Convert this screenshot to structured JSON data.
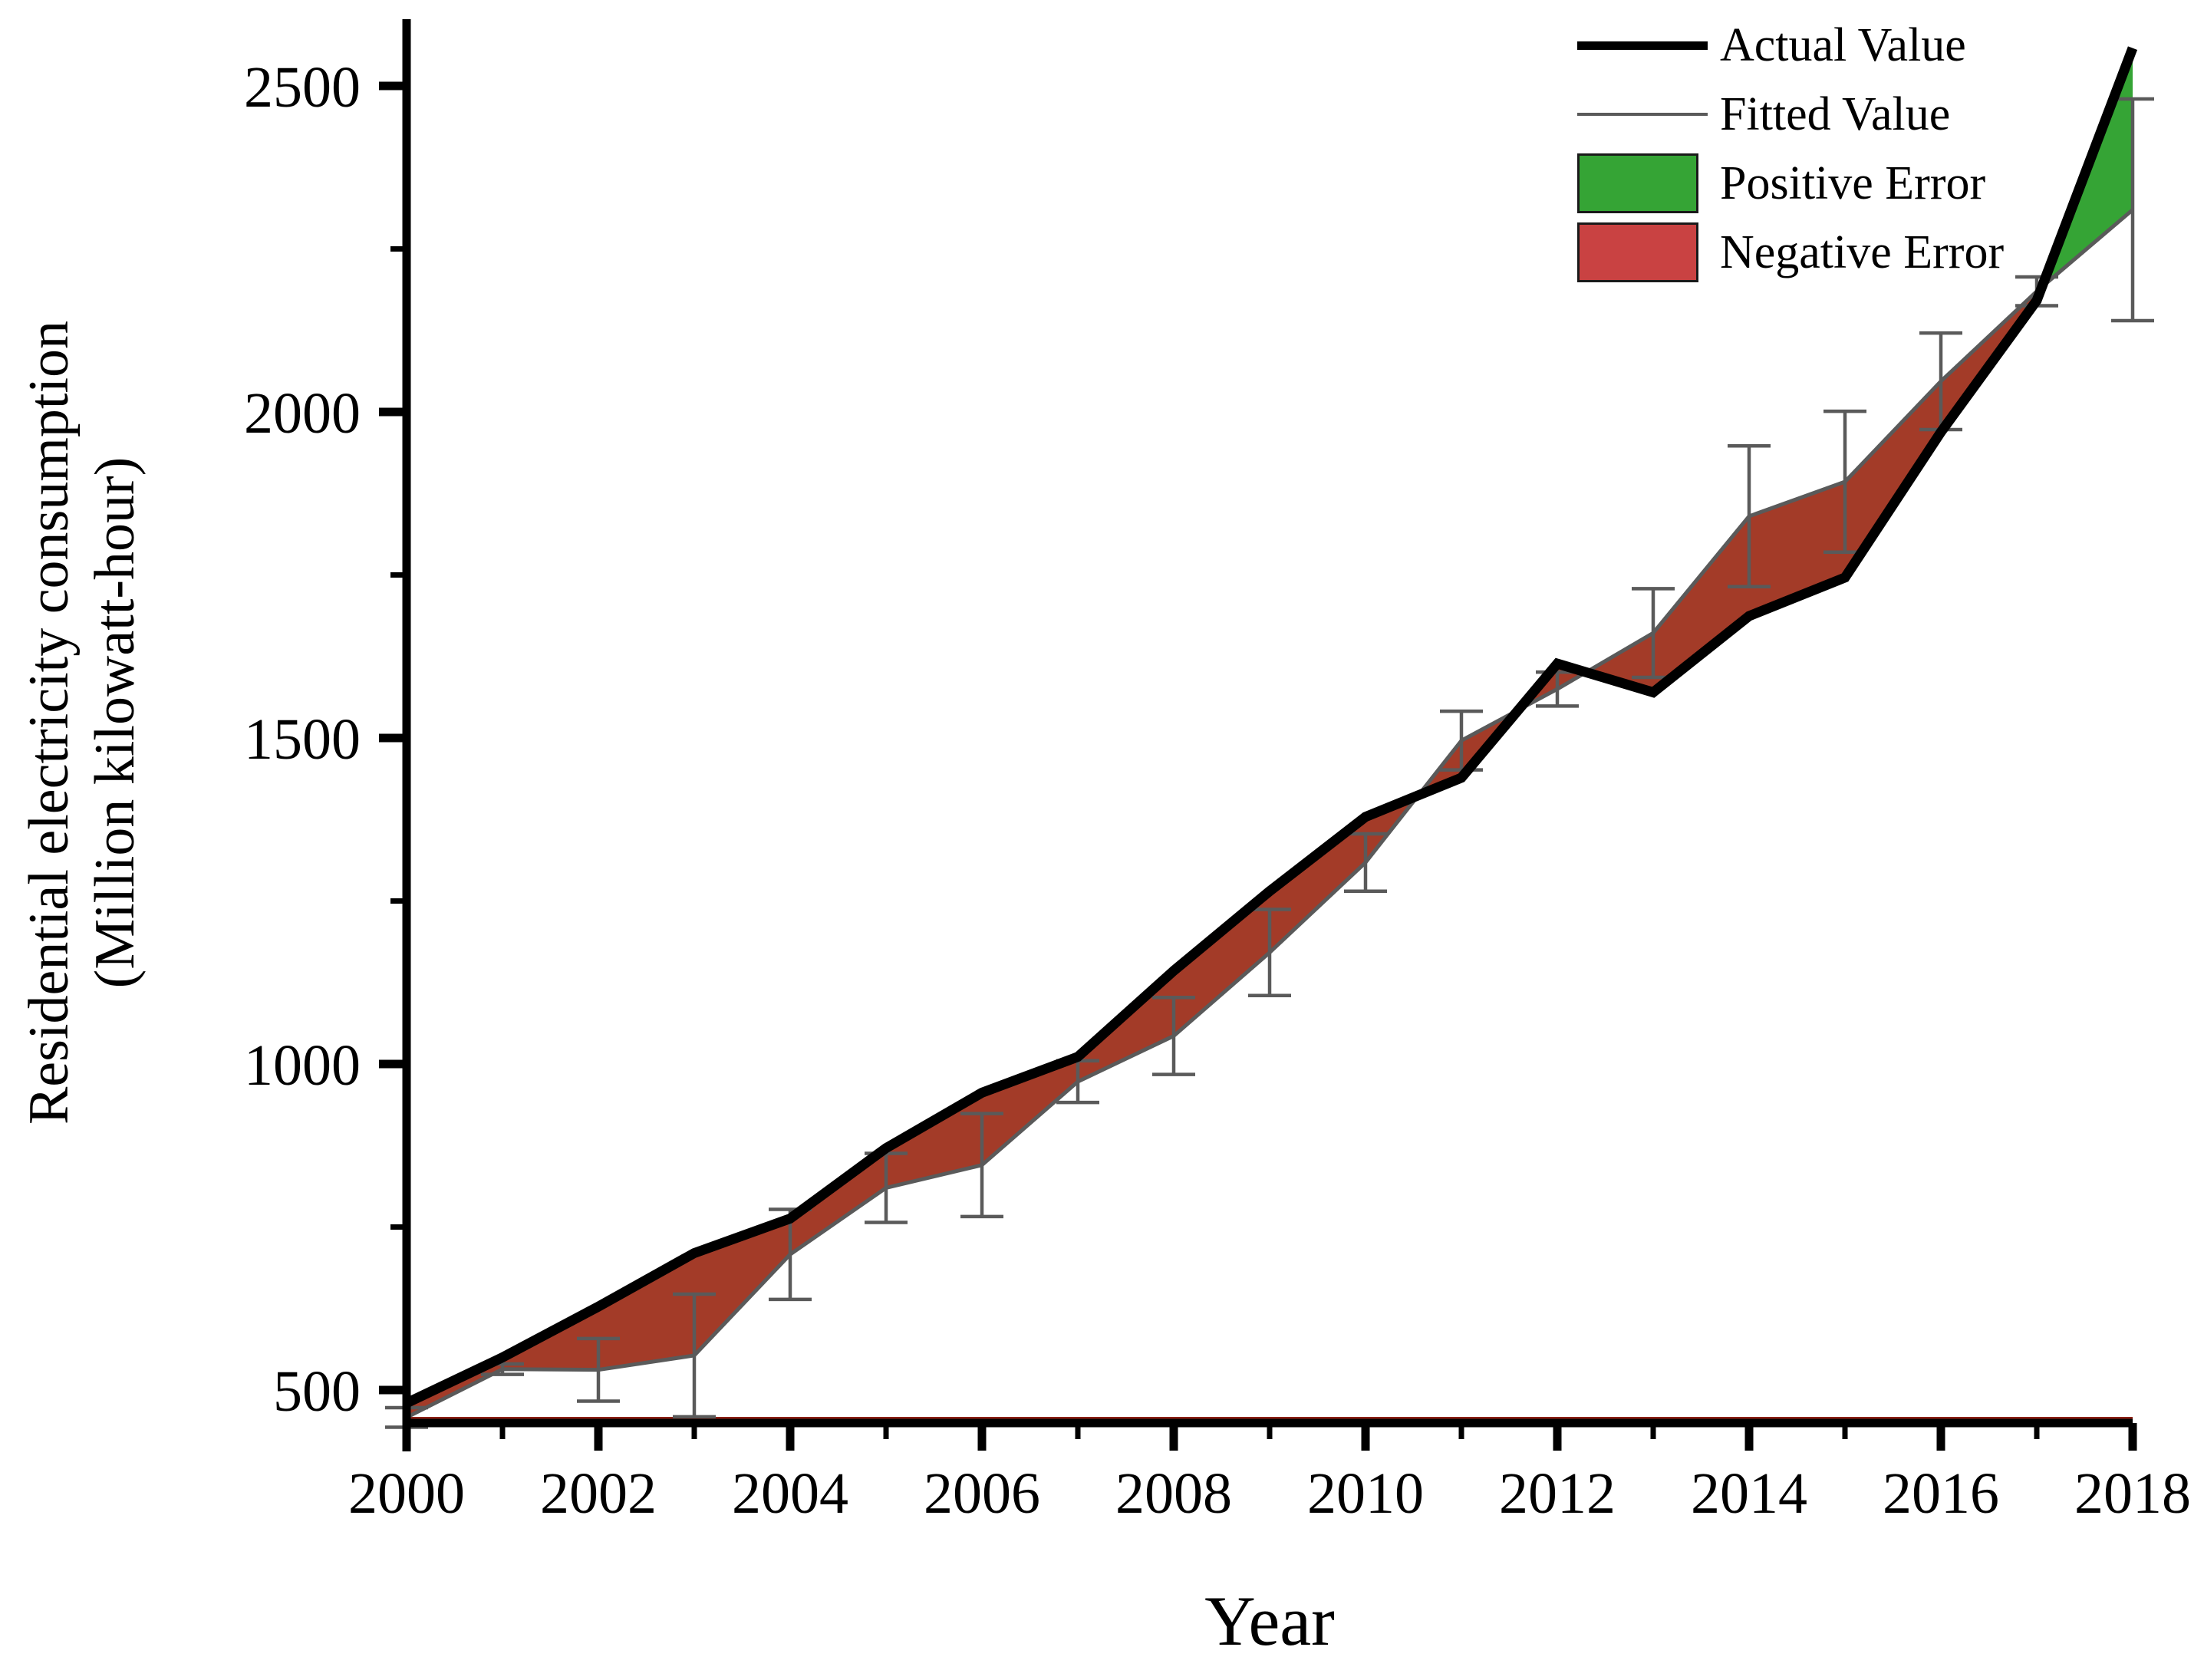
{
  "figure": {
    "x_title": "Year",
    "y_title_line1": "Residential electricity consumption",
    "y_title_line2": "(Million kilowatt-hour)"
  },
  "legend": {
    "items": [
      {
        "label": "Actual Value",
        "swatch": "thick-black-line-sample"
      },
      {
        "label": "Fitted Value",
        "swatch": "thin-grey-line-sample"
      },
      {
        "label": "Positive Error",
        "swatch": "green-box-sample"
      },
      {
        "label": "Negative Error",
        "swatch": "red-box-sample"
      }
    ]
  },
  "chart_data": {
    "type": "line",
    "title": "",
    "xlabel": "Year",
    "ylabel": "Residential electricity consumption (Million kilowatt-hour)",
    "x": [
      2000,
      2001,
      2002,
      2003,
      2004,
      2005,
      2006,
      2007,
      2008,
      2009,
      2010,
      2011,
      2012,
      2013,
      2014,
      2015,
      2016,
      2017,
      2018
    ],
    "series": [
      {
        "name": "Actual Value",
        "values": [
          480,
          550,
          628,
          710,
          763,
          871,
          956,
          1011,
          1143,
          1265,
          1379,
          1439,
          1614,
          1570,
          1687,
          1746,
          1969,
          2171,
          2558
        ]
      },
      {
        "name": "Fitted Value",
        "values": [
          458,
          532,
          531,
          553,
          708,
          810,
          845,
          973,
          1043,
          1171,
          1309,
          1496,
          1575,
          1661,
          1840,
          1893,
          2047,
          2185,
          2310
        ]
      }
    ],
    "error_bar_half_lengths": [
      15,
      8,
      48,
      94,
      69,
      53,
      79,
      32,
      59,
      66,
      44,
      45,
      26,
      68,
      108,
      108,
      74,
      22,
      170
    ],
    "fill_regions": {
      "negative_error": "red band between Actual and Fitted curves from 2000 until the final crossing near 2017",
      "positive_error": "green area between Actual and Fitted curves from the final crossing near 2017 to 2018"
    },
    "x_axis": {
      "major_tick_values": [
        2000,
        2002,
        2004,
        2006,
        2008,
        2010,
        2012,
        2014,
        2016,
        2018
      ],
      "major_tick_labels": [
        "2000",
        "2002",
        "2004",
        "2006",
        "2008",
        "2010",
        "2012",
        "2014",
        "2016",
        "2018"
      ],
      "minor_tick_values": [
        2001,
        2003,
        2005,
        2007,
        2009,
        2011,
        2013,
        2015,
        2017
      ]
    },
    "y_axis": {
      "major_tick_values": [
        500,
        1000,
        1500,
        2000,
        2500
      ],
      "major_tick_labels": [
        "500",
        "1000",
        "1500",
        "2000",
        "2500"
      ],
      "minor_tick_values": [
        750,
        1250,
        1750,
        2250
      ]
    },
    "xlim": [
      2000,
      2018
    ],
    "ylim": [
      450,
      2600
    ],
    "grid": false,
    "legend_position": "top-right",
    "colors": {
      "actual_line": "#000000",
      "fitted_line": "#5a5a5a",
      "error_bar": "#5a5a5a",
      "negative_fill": "#a33b28",
      "negative_legend_swatch": "#c94242",
      "positive_fill": "#35a435",
      "baseline_edge": "#8b2015"
    }
  }
}
